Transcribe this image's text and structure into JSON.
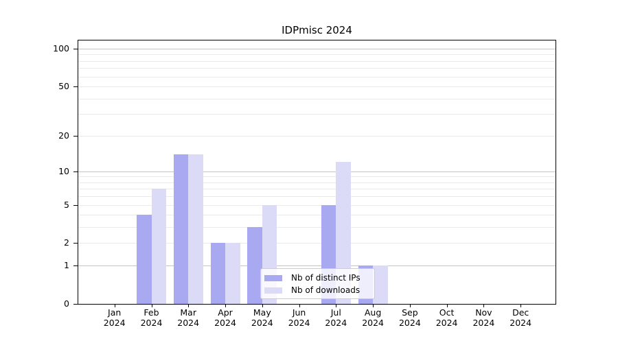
{
  "title": "IDPmisc 2024",
  "chart_data": {
    "type": "bar",
    "title": "IDPmisc 2024",
    "x_tick_months": [
      "Jan",
      "Feb",
      "Mar",
      "Apr",
      "May",
      "Jun",
      "Jul",
      "Aug",
      "Sep",
      "Oct",
      "Nov",
      "Dec"
    ],
    "x_tick_year": "2024",
    "categories": [
      "Jan 2024",
      "Feb 2024",
      "Mar 2024",
      "Apr 2024",
      "May 2024",
      "Jun 2024",
      "Jul 2024",
      "Aug 2024",
      "Sep 2024",
      "Oct 2024",
      "Nov 2024",
      "Dec 2024"
    ],
    "series": [
      {
        "name": "Nb of distinct IPs",
        "color": "#a9a9f2",
        "values": [
          0,
          4,
          14,
          2,
          3,
          0,
          5,
          1,
          0,
          0,
          0,
          0
        ]
      },
      {
        "name": "Nb of downloads",
        "color": "#dbdbf8",
        "values": [
          0,
          7,
          14,
          2,
          5,
          0,
          12,
          1,
          0,
          0,
          0,
          0
        ]
      }
    ],
    "yscale": "log1p",
    "ylim": [
      0,
      118
    ],
    "yticks": [
      0,
      1,
      2,
      5,
      10,
      20,
      50,
      100
    ],
    "major_gridlines": [
      1,
      10,
      100
    ],
    "minor_gridlines": [
      2,
      3,
      4,
      5,
      6,
      7,
      8,
      9,
      20,
      30,
      40,
      50,
      60,
      70,
      80,
      90
    ],
    "grid": true,
    "legend_position": "lower center",
    "xlabel": "",
    "ylabel": ""
  },
  "colors": {
    "series_distinct_ips": "#a9a9f2",
    "series_downloads": "#dbdbf8",
    "major_grid": "#c4c4c4",
    "minor_grid": "#eaeaea",
    "axis": "#000000",
    "legend_border": "#cccccc"
  }
}
